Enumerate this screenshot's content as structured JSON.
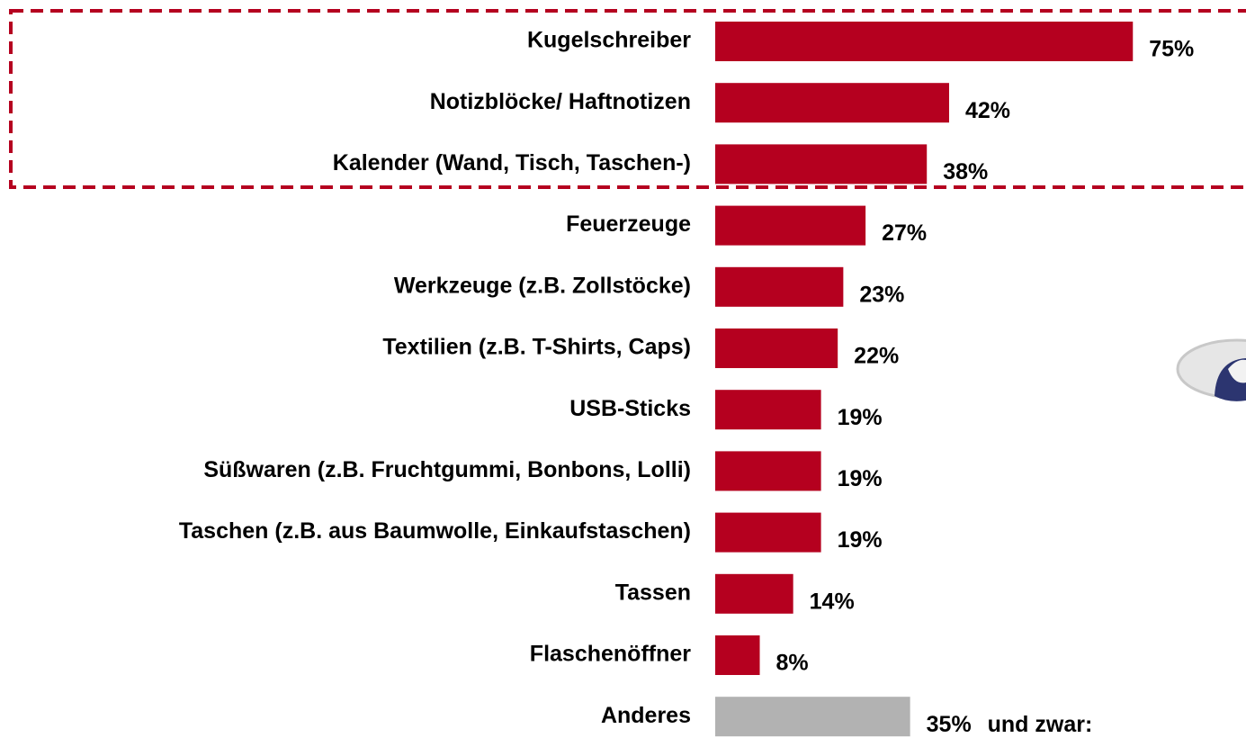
{
  "chart_data": {
    "type": "bar",
    "orientation": "horizontal",
    "categories": [
      "Kugelschreiber",
      "Notizblöcke/ Haftnotizen",
      "Kalender (Wand, Tisch, Taschen-)",
      "Feuerzeuge",
      "Werkzeuge (z.B. Zollstöcke)",
      "Textilien (z.B. T-Shirts, Caps)",
      "USB-Sticks",
      "Süßwaren (z.B. Fruchtgummi, Bonbons, Lolli)",
      "Taschen (z.B. aus Baumwolle, Einkaufstaschen)",
      "Tassen",
      "Flaschenöffner",
      "Anderes"
    ],
    "values": [
      75,
      42,
      38,
      27,
      23,
      22,
      19,
      19,
      19,
      14,
      8,
      35
    ],
    "value_labels": [
      "75%",
      "42%",
      "38%",
      "27%",
      "23%",
      "22%",
      "19%",
      "19%",
      "19%",
      "14%",
      "8%",
      "35%"
    ],
    "colors": [
      "#b5001f",
      "#b5001f",
      "#b5001f",
      "#b5001f",
      "#b5001f",
      "#b5001f",
      "#b5001f",
      "#b5001f",
      "#b5001f",
      "#b5001f",
      "#b5001f",
      "#b2b2b2"
    ],
    "annotation": "und zwar:"
  }
}
